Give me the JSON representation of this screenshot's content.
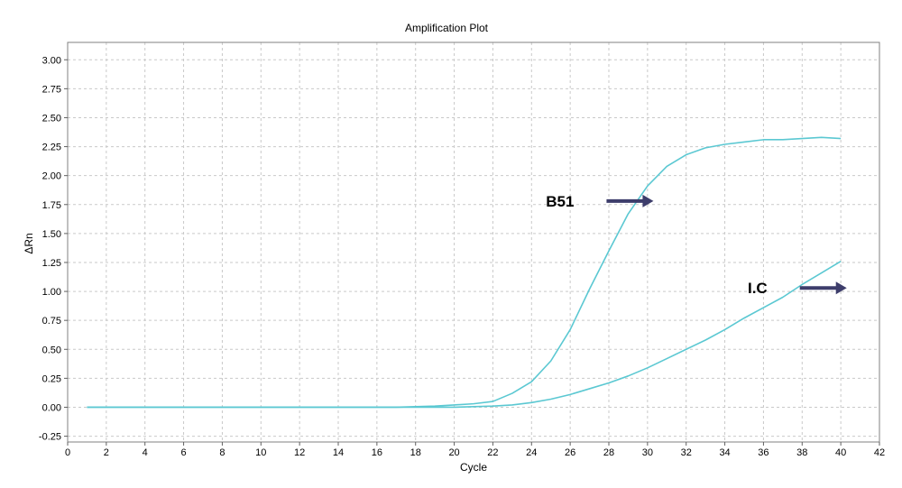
{
  "chart_data": {
    "type": "line",
    "title": "Amplification Plot",
    "xlabel": "Cycle",
    "ylabel": "ΔRn",
    "xlim": [
      0,
      42
    ],
    "ylim": [
      -0.3,
      3.15
    ],
    "x_ticks": [
      "0",
      "2",
      "4",
      "6",
      "8",
      "10",
      "12",
      "14",
      "16",
      "18",
      "20",
      "22",
      "24",
      "26",
      "28",
      "30",
      "32",
      "34",
      "36",
      "38",
      "40",
      "42"
    ],
    "y_ticks": [
      "-0.25",
      "0.00",
      "0.25",
      "0.50",
      "0.75",
      "1.00",
      "1.25",
      "1.50",
      "1.75",
      "2.00",
      "2.25",
      "2.50",
      "2.75",
      "3.00"
    ],
    "grid": true,
    "line_color": "#5bc8d2",
    "arrow_color": "#3d3d6b",
    "x": [
      1,
      2,
      3,
      4,
      5,
      6,
      7,
      8,
      9,
      10,
      11,
      12,
      13,
      14,
      15,
      16,
      17,
      18,
      19,
      20,
      21,
      22,
      23,
      24,
      25,
      26,
      27,
      28,
      29,
      30,
      31,
      32,
      33,
      34,
      35,
      36,
      37,
      38,
      39,
      40
    ],
    "series": [
      {
        "values": [
          0,
          0,
          0,
          0,
          0,
          0,
          0,
          0,
          0,
          0,
          0,
          0,
          0,
          0,
          0,
          0,
          0,
          0.005,
          0.01,
          0.02,
          0.03,
          0.05,
          0.12,
          0.22,
          0.4,
          0.67,
          1.02,
          1.35,
          1.67,
          1.91,
          2.08,
          2.18,
          2.24,
          2.27,
          2.29,
          2.31,
          2.31,
          2.32,
          2.33,
          2.32
        ]
      },
      {
        "values": [
          0,
          0,
          0,
          0,
          0,
          0,
          0,
          0,
          0,
          0,
          0,
          0,
          0,
          0,
          0,
          0,
          0,
          0,
          0,
          0,
          0.005,
          0.01,
          0.02,
          0.04,
          0.07,
          0.11,
          0.16,
          0.21,
          0.27,
          0.34,
          0.42,
          0.5,
          0.58,
          0.67,
          0.77,
          0.86,
          0.95,
          1.06,
          1.16,
          1.26
        ]
      }
    ],
    "annotations": [
      {
        "text": "B51",
        "x": 26.2,
        "y": 1.78
      },
      {
        "text": "I.C",
        "x": 36.2,
        "y": 1.03
      }
    ]
  }
}
